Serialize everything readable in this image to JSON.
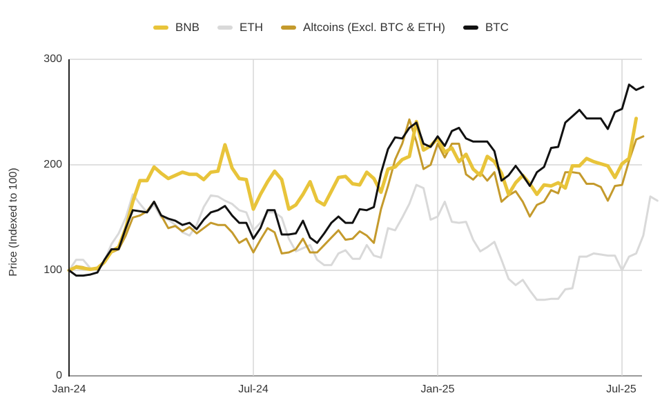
{
  "chart_data": {
    "type": "line",
    "title": "",
    "xlabel": "",
    "ylabel": "Price (Indexed to 100)",
    "ylim": [
      0,
      300
    ],
    "yticks": [
      0,
      100,
      200,
      300
    ],
    "xticks": [
      {
        "label": "Jan-24",
        "index": 0
      },
      {
        "label": "Jul-24",
        "index": 26
      },
      {
        "label": "Jan-25",
        "index": 52
      },
      {
        "label": "Jul-25",
        "index": 78
      }
    ],
    "x_frequency": "weekly",
    "grid": true,
    "legend_position": "top",
    "series": [
      {
        "name": "BNB",
        "color": "#E8C43A",
        "width": 5,
        "values": [
          100,
          103,
          102,
          101,
          102,
          108,
          118,
          122,
          140,
          165,
          185,
          185,
          198,
          192,
          187,
          190,
          193,
          191,
          191,
          186,
          193,
          194,
          219,
          197,
          187,
          186,
          158,
          172,
          184,
          194,
          186,
          158,
          162,
          172,
          184,
          166,
          162,
          175,
          188,
          189,
          182,
          181,
          193,
          187,
          174,
          196,
          198,
          205,
          208,
          241,
          214,
          218,
          225,
          212,
          216,
          203,
          210,
          196,
          190,
          208,
          203,
          192,
          172,
          183,
          190,
          182,
          172,
          181,
          180,
          183,
          178,
          199,
          199,
          206,
          203,
          201,
          199,
          188,
          201,
          206,
          244
        ]
      },
      {
        "name": "ETH",
        "color": "#D9D9D9",
        "width": 3,
        "values": [
          100,
          110,
          110,
          102,
          100,
          109,
          125,
          135,
          150,
          172,
          163,
          155,
          162,
          150,
          148,
          143,
          136,
          133,
          143,
          160,
          171,
          170,
          166,
          163,
          157,
          155,
          138,
          145,
          155,
          155,
          150,
          130,
          118,
          121,
          124,
          110,
          105,
          105,
          116,
          119,
          111,
          111,
          124,
          114,
          112,
          140,
          138,
          150,
          163,
          181,
          178,
          148,
          151,
          165,
          146,
          145,
          146,
          129,
          118,
          122,
          127,
          110,
          92,
          86,
          91,
          81,
          72,
          72,
          73,
          73,
          82,
          83,
          113,
          113,
          116,
          115,
          114,
          114,
          100,
          113,
          116,
          133,
          170,
          166
        ]
      },
      {
        "name": "Altcoins (Excl. BTC & ETH)",
        "color": "#C49A2C",
        "width": 3,
        "values": [
          100,
          104,
          103,
          101,
          101,
          107,
          117,
          120,
          133,
          150,
          152,
          156,
          165,
          152,
          140,
          142,
          137,
          141,
          135,
          140,
          145,
          143,
          143,
          136,
          126,
          130,
          117,
          129,
          140,
          136,
          116,
          117,
          120,
          130,
          117,
          117,
          124,
          131,
          138,
          129,
          130,
          137,
          133,
          126,
          158,
          180,
          205,
          220,
          243,
          222,
          196,
          200,
          220,
          207,
          220,
          220,
          191,
          186,
          193,
          185,
          193,
          165,
          171,
          175,
          165,
          151,
          162,
          165,
          176,
          173,
          193,
          193,
          192,
          182,
          182,
          179,
          166,
          180,
          181,
          204,
          224,
          227
        ]
      },
      {
        "name": "BTC",
        "color": "#111111",
        "width": 3,
        "values": [
          100,
          95,
          95,
          96,
          98,
          110,
          120,
          120,
          140,
          157,
          156,
          155,
          165,
          152,
          149,
          147,
          143,
          145,
          139,
          148,
          155,
          157,
          161,
          152,
          145,
          145,
          130,
          140,
          157,
          157,
          134,
          134,
          135,
          147,
          131,
          126,
          135,
          145,
          151,
          145,
          145,
          158,
          157,
          160,
          192,
          215,
          226,
          225,
          235,
          240,
          220,
          217,
          227,
          218,
          232,
          235,
          225,
          222,
          222,
          222,
          213,
          185,
          190,
          199,
          190,
          180,
          193,
          198,
          216,
          217,
          240,
          246,
          252,
          244,
          244,
          244,
          234,
          250,
          253,
          276,
          271,
          274
        ]
      }
    ]
  },
  "legend": {
    "items": [
      {
        "label": "BNB",
        "color": "#E8C43A"
      },
      {
        "label": "ETH",
        "color": "#D9D9D9"
      },
      {
        "label": "Altcoins (Excl. BTC & ETH)",
        "color": "#C49A2C"
      },
      {
        "label": "BTC",
        "color": "#111111"
      }
    ]
  },
  "axes": {
    "y_title": "Price (Indexed to 100)",
    "y_ticks": [
      "0",
      "100",
      "200",
      "300"
    ],
    "x_ticks": [
      "Jan-24",
      "Jul-24",
      "Jan-25",
      "Jul-25"
    ]
  }
}
